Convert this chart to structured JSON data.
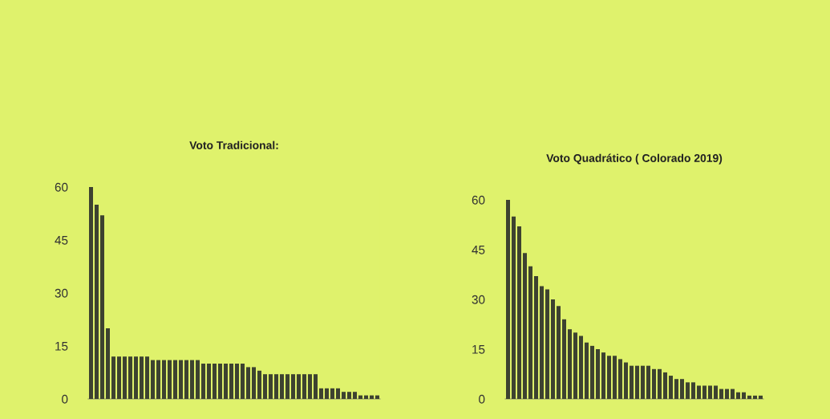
{
  "chart_data": [
    {
      "type": "bar",
      "title": "Voto Tradicional:",
      "tick_labels": "y",
      "color": "#3d4230",
      "ylim": [
        0,
        60
      ],
      "yticks": [
        0,
        15,
        30,
        45,
        60
      ],
      "grid": false,
      "categories": [
        null,
        null,
        null,
        null,
        null,
        null,
        null,
        null,
        null,
        null,
        null,
        null,
        null,
        null,
        null,
        null,
        null,
        null,
        null,
        null,
        null,
        null,
        null,
        null,
        null,
        null,
        null,
        null,
        null,
        null,
        null,
        null,
        null,
        null,
        null,
        null,
        null,
        null,
        null,
        null,
        null,
        null,
        null,
        null,
        null,
        null,
        null,
        null,
        null,
        null,
        null,
        null
      ],
      "values": [
        60,
        55,
        52,
        20,
        12,
        12,
        12,
        12,
        12,
        12,
        12,
        11,
        11,
        11,
        11,
        11,
        11,
        11,
        11,
        11,
        10,
        10,
        10,
        10,
        10,
        10,
        10,
        10,
        9,
        9,
        8,
        7,
        7,
        7,
        7,
        7,
        7,
        7,
        7,
        7,
        7,
        3,
        3,
        3,
        3,
        2,
        2,
        2,
        1,
        1,
        1,
        1
      ]
    },
    {
      "type": "bar",
      "title": "Voto Quadrático ( Colorado 2019)",
      "tick_labels": "y",
      "color": "#3d4230",
      "ylim": [
        0,
        60
      ],
      "yticks": [
        0,
        15,
        30,
        45,
        60
      ],
      "grid": false,
      "categories": [
        null,
        null,
        null,
        null,
        null,
        null,
        null,
        null,
        null,
        null,
        null,
        null,
        null,
        null,
        null,
        null,
        null,
        null,
        null,
        null,
        null,
        null,
        null,
        null,
        null,
        null,
        null,
        null,
        null,
        null,
        null,
        null,
        null,
        null,
        null,
        null,
        null,
        null,
        null,
        null,
        null,
        null,
        null,
        null,
        null,
        null
      ],
      "values": [
        60,
        55,
        52,
        44,
        40,
        37,
        34,
        33,
        30,
        28,
        24,
        21,
        20,
        19,
        17,
        16,
        15,
        14,
        13,
        13,
        12,
        11,
        10,
        10,
        10,
        10,
        9,
        9,
        8,
        7,
        6,
        6,
        5,
        5,
        4,
        4,
        4,
        4,
        3,
        3,
        3,
        2,
        2,
        1,
        1,
        1
      ]
    }
  ]
}
